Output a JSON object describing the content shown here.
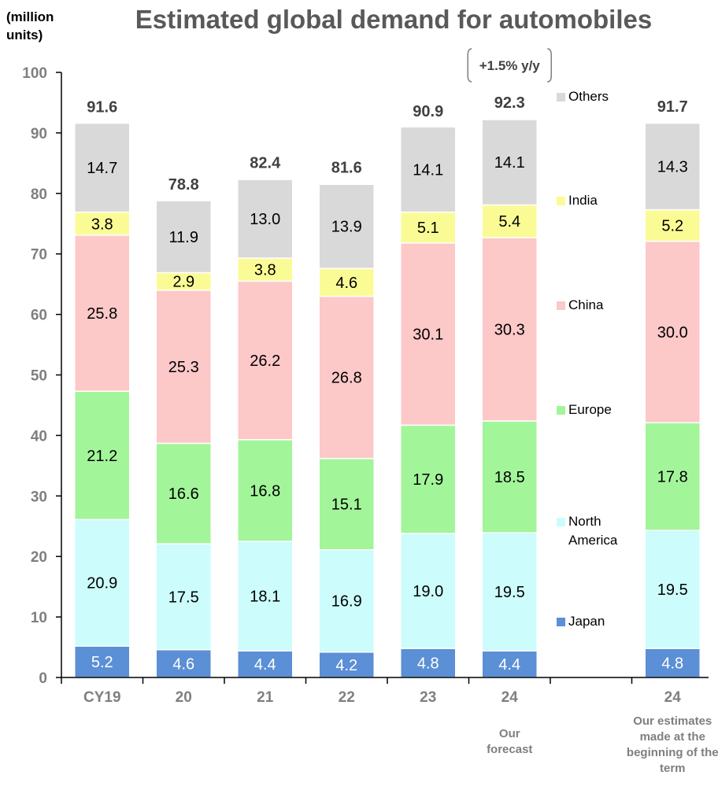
{
  "unit_label": [
    "(million",
    "units)"
  ],
  "chart_data": {
    "type": "bar",
    "stacked": true,
    "title": "Estimated global demand for automobiles",
    "ylim": [
      0,
      100
    ],
    "yticks": [
      0,
      10,
      20,
      30,
      40,
      50,
      60,
      70,
      80,
      90,
      100
    ],
    "categories": [
      "CY19",
      "20",
      "21",
      "22",
      "23",
      "24",
      "24"
    ],
    "category_notes": [
      "",
      "",
      "",
      "",
      "",
      [
        "Our",
        "forecast"
      ],
      [
        "Our estimates",
        "made at the",
        "beginning of the",
        "term"
      ]
    ],
    "series": [
      {
        "name": "Japan",
        "color": "#5b8fd6",
        "values": [
          5.2,
          4.6,
          4.4,
          4.2,
          4.8,
          4.4,
          4.8
        ]
      },
      {
        "name": "North America",
        "legend_lines": [
          "North",
          "America"
        ],
        "color": "#ccfcfc",
        "values": [
          20.9,
          17.5,
          18.1,
          16.9,
          19.0,
          19.5,
          19.5
        ]
      },
      {
        "name": "Europe",
        "color": "#a3f59a",
        "values": [
          21.2,
          16.6,
          16.8,
          15.1,
          17.9,
          18.5,
          17.8
        ]
      },
      {
        "name": "China",
        "color": "#fcc8c8",
        "values": [
          25.8,
          25.3,
          26.2,
          26.8,
          30.1,
          30.3,
          30.0
        ]
      },
      {
        "name": "India",
        "color": "#fbfb96",
        "values": [
          3.8,
          2.9,
          3.8,
          4.6,
          5.1,
          5.4,
          5.2
        ]
      },
      {
        "name": "Others",
        "color": "#d9d9d9",
        "values": [
          14.7,
          11.9,
          13.0,
          13.9,
          14.1,
          14.1,
          14.3
        ]
      }
    ],
    "totals": [
      91.6,
      78.8,
      82.4,
      81.6,
      90.9,
      92.3,
      91.7
    ],
    "annotation": "+1.5% y/y",
    "legend_position": "right of 2024 forecast bar"
  }
}
